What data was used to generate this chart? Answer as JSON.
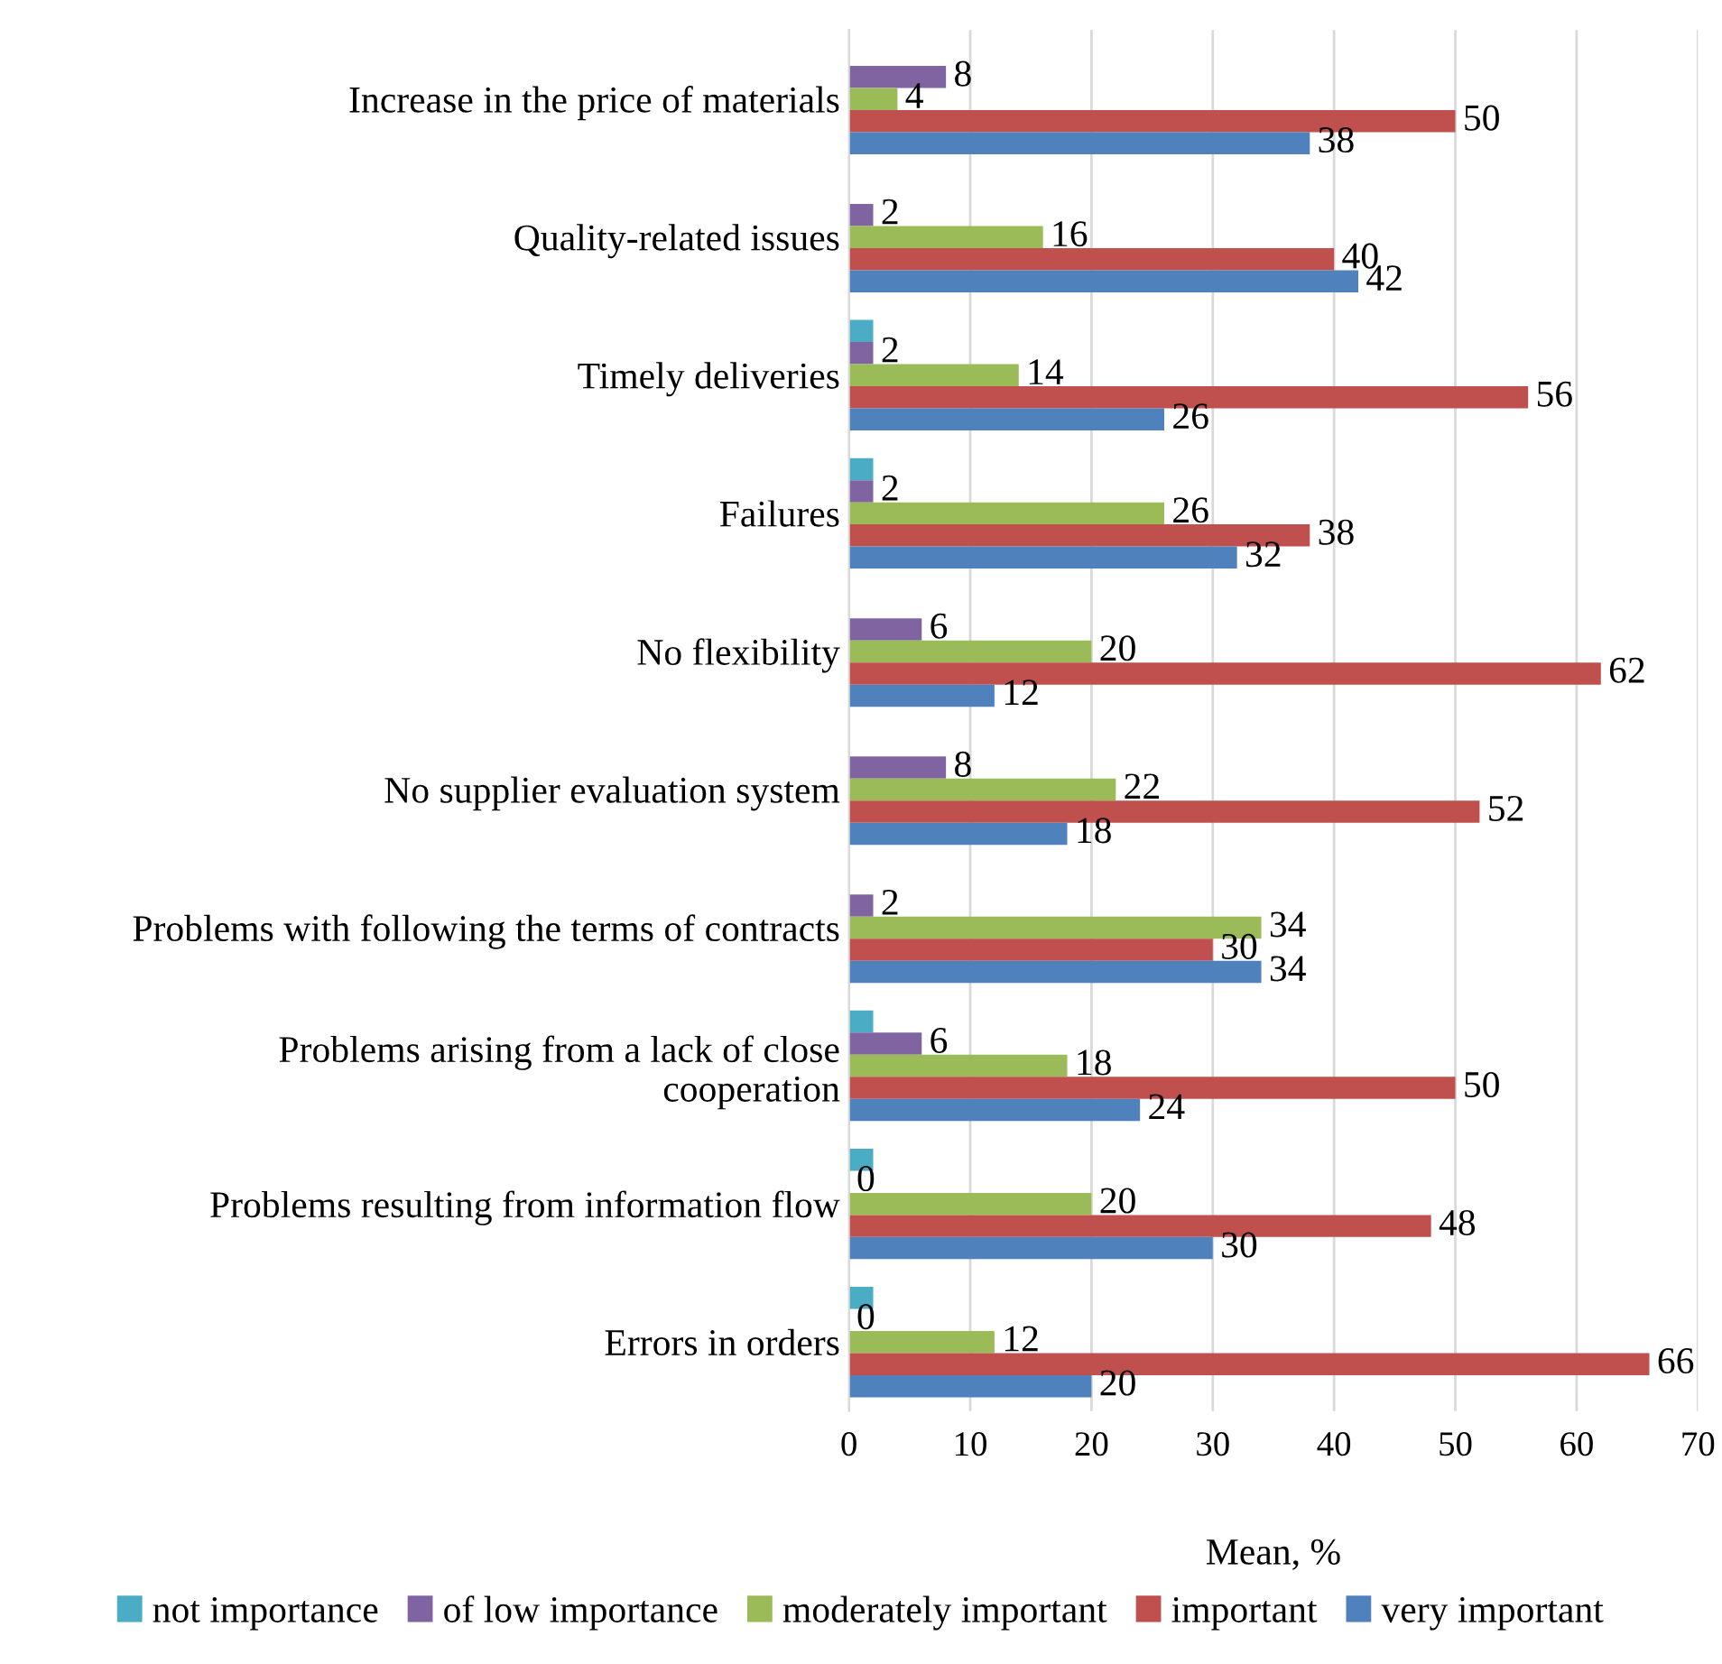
{
  "chart_data": {
    "type": "bar",
    "orientation": "horizontal",
    "xlabel": "Mean, %",
    "categories": [
      "Increase in the price of materials",
      "Quality-related issues",
      "Timely deliveries",
      "Failures",
      "No flexibility",
      "No supplier evaluation system",
      "Problems with following the terms of contracts",
      "Problems arising from a lack of close\ncooperation",
      "Problems resulting from information flow",
      "Errors in orders"
    ],
    "series": [
      {
        "name": "not importance",
        "color": "#4bacc6",
        "values": [
          0,
          0,
          2,
          2,
          0,
          0,
          0,
          2,
          2,
          2
        ],
        "value_labels": [
          null,
          null,
          null,
          null,
          null,
          null,
          null,
          null,
          null,
          null
        ]
      },
      {
        "name": "of low importance",
        "color": "#8064a2",
        "values": [
          8,
          2,
          2,
          2,
          6,
          8,
          2,
          6,
          0,
          0
        ],
        "value_labels": [
          "8",
          "2",
          "2",
          "2",
          "6",
          "8",
          "2",
          "6",
          "0",
          "0"
        ]
      },
      {
        "name": "moderately important",
        "color": "#9bbb59",
        "values": [
          4,
          16,
          14,
          26,
          20,
          22,
          34,
          18,
          20,
          12
        ],
        "value_labels": [
          "4",
          "16",
          "14",
          "26",
          "20",
          "22",
          "34",
          "18",
          "20",
          "12"
        ]
      },
      {
        "name": "important",
        "color": "#c0504d",
        "values": [
          50,
          40,
          56,
          38,
          62,
          52,
          30,
          50,
          48,
          66
        ],
        "value_labels": [
          "50",
          "40",
          "56",
          "38",
          "62",
          "52",
          "30",
          "50",
          "48",
          "66"
        ]
      },
      {
        "name": "very important",
        "color": "#4f81bd",
        "values": [
          38,
          42,
          26,
          32,
          12,
          18,
          34,
          24,
          30,
          20
        ],
        "value_labels": [
          "38",
          "42",
          "26",
          "32",
          "12",
          "18",
          "34",
          "24",
          "30",
          "20"
        ]
      }
    ],
    "xlim": [
      0,
      70
    ],
    "xticks": [
      0,
      10,
      20,
      30,
      40,
      50,
      60,
      70
    ],
    "grid": "x",
    "legend": "bottom"
  }
}
